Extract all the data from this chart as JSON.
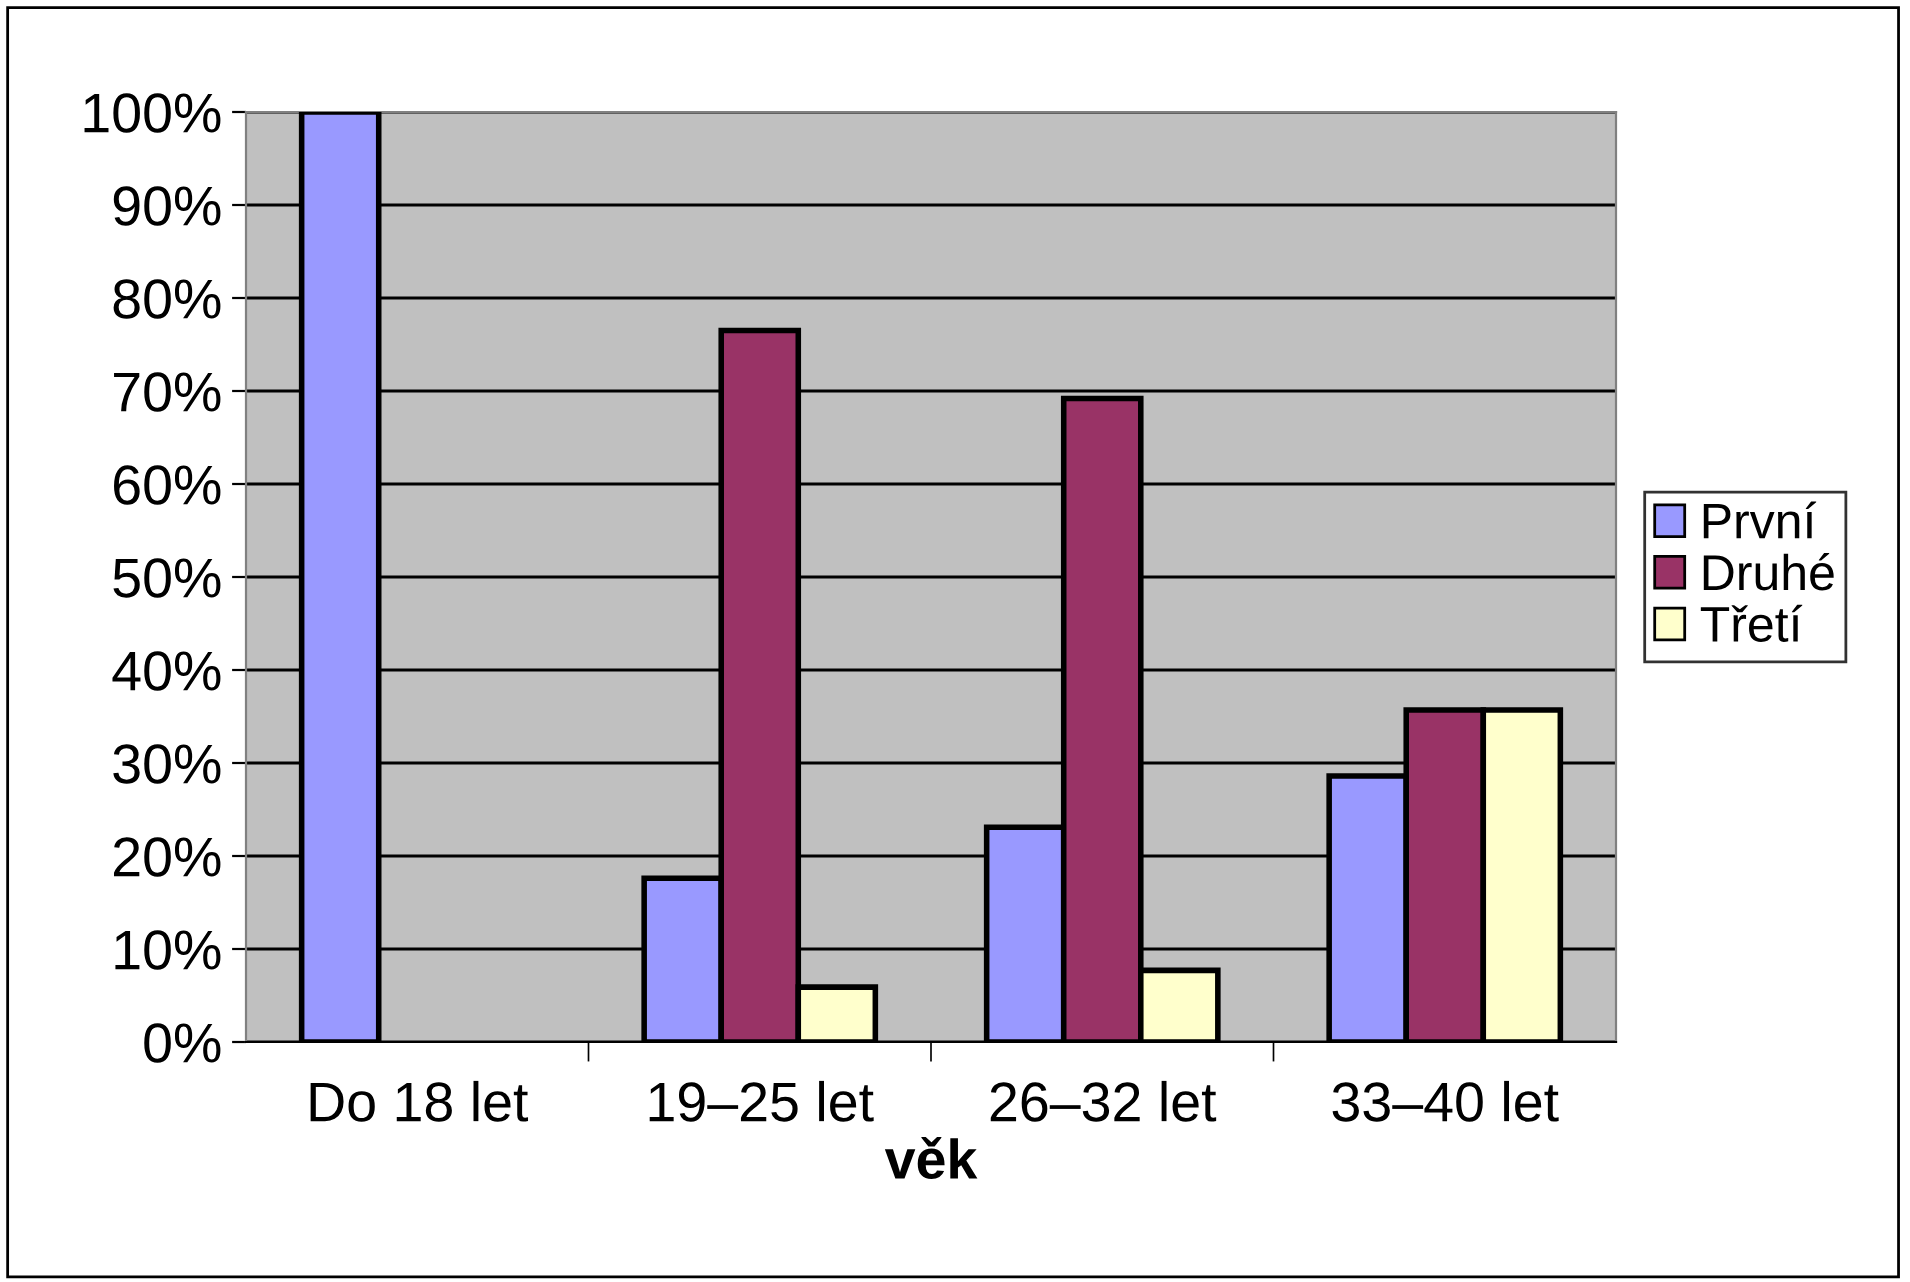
{
  "chart_data": {
    "type": "bar",
    "xlabel": "věk",
    "categories": [
      "Do 18 let",
      "19–25 let",
      "26–32 let",
      "33–40 let"
    ],
    "series": [
      {
        "name": "První",
        "color": "#9999ff",
        "values": [
          100,
          17.6,
          23.1,
          28.6
        ]
      },
      {
        "name": "Druhé",
        "color": "#993366",
        "values": [
          null,
          76.5,
          69.2,
          35.7
        ]
      },
      {
        "name": "Třetí",
        "color": "#ffffcc",
        "values": [
          null,
          5.9,
          7.7,
          35.7
        ]
      }
    ],
    "ylim": [
      0,
      100
    ],
    "yticks": [
      {
        "value": 0,
        "label": "0%"
      },
      {
        "value": 10,
        "label": "10%"
      },
      {
        "value": 20,
        "label": "20%"
      },
      {
        "value": 30,
        "label": "30%"
      },
      {
        "value": 40,
        "label": "40%"
      },
      {
        "value": 50,
        "label": "50%"
      },
      {
        "value": 60,
        "label": "60%"
      },
      {
        "value": 70,
        "label": "70%"
      },
      {
        "value": 80,
        "label": "80%"
      },
      {
        "value": 90,
        "label": "90%"
      },
      {
        "value": 100,
        "label": "100%"
      }
    ],
    "grid": "y",
    "legend": "right"
  }
}
